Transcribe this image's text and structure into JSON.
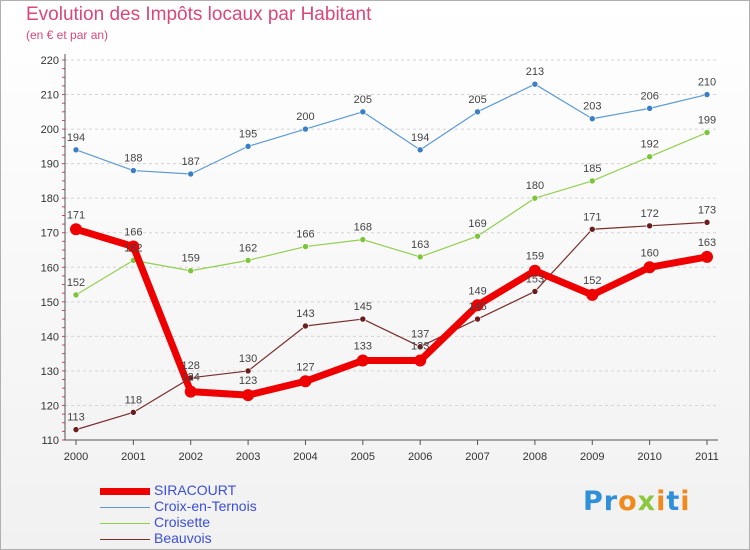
{
  "title": "Evolution des Impôts locaux par Habitant",
  "subtitle": "(en € et par an)",
  "logo": {
    "text": "Proxiti"
  },
  "chart_data": {
    "type": "line",
    "title": "Evolution des Impôts locaux par Habitant",
    "subtitle": "(en € et par an)",
    "x": [
      "2000",
      "2001",
      "2002",
      "2003",
      "2004",
      "2005",
      "2006",
      "2007",
      "2008",
      "2009",
      "2010",
      "2011"
    ],
    "ylim": [
      110,
      220
    ],
    "yticks": [
      110,
      120,
      130,
      140,
      150,
      160,
      170,
      180,
      190,
      200,
      210,
      220
    ],
    "grid": "horizontal dashed",
    "legend_position": "bottom-left",
    "series": [
      {
        "name": "Croix-en-Ternois",
        "color": "#5b9bd5",
        "marker_color": "#3a7ec4",
        "values": [
          194,
          188,
          187,
          195,
          200,
          205,
          194,
          205,
          213,
          203,
          206,
          210
        ]
      },
      {
        "name": "Croisette",
        "color": "#92d050",
        "marker_color": "#7cc43a",
        "values": [
          152,
          162,
          159,
          162,
          166,
          168,
          163,
          169,
          180,
          185,
          192,
          199
        ]
      },
      {
        "name": "Beauvois",
        "color": "#7a2e2e",
        "marker_color": "#6b1d1d",
        "values": [
          113,
          118,
          128,
          130,
          143,
          145,
          137,
          145,
          153,
          171,
          172,
          173
        ]
      },
      {
        "name": "SIRACOURT",
        "color": "#ee0000",
        "marker_color": "#ee0000",
        "values": [
          171,
          166,
          124,
          123,
          127,
          133,
          133,
          149,
          159,
          152,
          160,
          163
        ]
      }
    ],
    "legend": [
      "SIRACOURT",
      "Croix-en-Ternois",
      "Croisette",
      "Beauvois"
    ]
  }
}
